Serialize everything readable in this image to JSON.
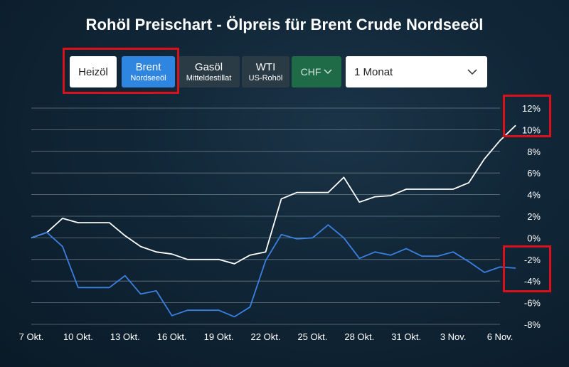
{
  "title": "Rohöl Preischart - Ölpreis für Brent Crude Nordseeöl",
  "buttons": {
    "heizoel": "Heizöl",
    "brent_line1": "Brent",
    "brent_line2": "Nordseeöl",
    "gasoel_line1": "Gasöl",
    "gasoel_line2": "Mitteldestillat",
    "wti_line1": "WTI",
    "wti_line2": "US-Rohöl",
    "currency": "CHF"
  },
  "period_select": {
    "value": "1 Monat"
  },
  "icons": {
    "currency_dropdown": "chevron-down-icon",
    "period_dropdown": "chevron-down-icon"
  },
  "colors": {
    "brent_line": "#ffffff",
    "comparison_line": "#3b7fe0",
    "active_button": "#2f86e0",
    "currency_button": "#1f6a47",
    "highlight_box": "#d8111b"
  },
  "chart_data": {
    "type": "line",
    "x": [
      "7 Okt.",
      "8 Okt.",
      "9 Okt.",
      "10 Okt.",
      "11 Okt.",
      "12 Okt.",
      "13 Okt.",
      "14 Okt.",
      "15 Okt.",
      "16 Okt.",
      "17 Okt.",
      "18 Okt.",
      "19 Okt.",
      "20 Okt.",
      "21 Okt.",
      "22 Okt.",
      "23 Okt.",
      "24 Okt.",
      "25 Okt.",
      "26 Okt.",
      "27 Okt.",
      "28 Okt.",
      "29 Okt.",
      "30 Okt.",
      "31 Okt.",
      "1 Nov.",
      "2 Nov.",
      "3 Nov.",
      "4 Nov.",
      "5 Nov.",
      "6 Nov.",
      "7 Nov."
    ],
    "x_tick_labels": [
      "7 Okt.",
      "10 Okt.",
      "13 Okt.",
      "16 Okt.",
      "19 Okt.",
      "22 Okt.",
      "25 Okt.",
      "28 Okt.",
      "31 Okt.",
      "3 Nov.",
      "6 Nov."
    ],
    "x_tick_indices": [
      0,
      3,
      6,
      9,
      12,
      15,
      18,
      21,
      24,
      27,
      30
    ],
    "series": [
      {
        "values": [
          0,
          0.5,
          1.8,
          1.4,
          1.4,
          1.4,
          0.2,
          -0.8,
          -1.3,
          -1.5,
          -2.0,
          -2.0,
          -2.0,
          -2.4,
          -1.6,
          -1.3,
          3.6,
          4.2,
          4.2,
          4.2,
          5.6,
          3.3,
          3.8,
          3.9,
          4.5,
          4.5,
          4.5,
          4.5,
          5.1,
          7.3,
          9.0,
          10.4
        ]
      },
      {
        "values": [
          0,
          0.5,
          -0.8,
          -4.6,
          -4.6,
          -4.6,
          -3.5,
          -5.2,
          -4.9,
          -7.2,
          -6.7,
          -6.7,
          -6.7,
          -7.3,
          -6.4,
          -2.1,
          0.3,
          -0.1,
          0.0,
          1.2,
          0.0,
          -1.9,
          -1.3,
          -1.6,
          -1.0,
          -1.7,
          -1.7,
          -1.3,
          -2.2,
          -3.2,
          -2.7,
          -2.8
        ]
      }
    ],
    "y_ticks": [
      "12%",
      "10%",
      "8%",
      "6%",
      "4%",
      "2%",
      "0%",
      "-2%",
      "-4%",
      "-6%",
      "-8%"
    ],
    "ylim": [
      -8,
      12
    ],
    "grid": true,
    "xlabel": "",
    "ylabel": ""
  }
}
